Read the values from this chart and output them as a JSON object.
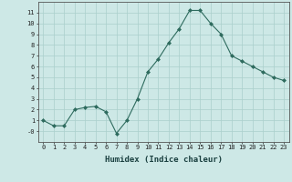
{
  "x": [
    0,
    1,
    2,
    3,
    4,
    5,
    6,
    7,
    8,
    9,
    10,
    11,
    12,
    13,
    14,
    15,
    16,
    17,
    18,
    19,
    20,
    21,
    22,
    23
  ],
  "y": [
    1.0,
    0.5,
    0.5,
    2.0,
    2.2,
    2.3,
    1.8,
    -0.2,
    1.0,
    3.0,
    5.5,
    6.7,
    8.2,
    9.5,
    11.2,
    11.2,
    10.0,
    9.0,
    7.0,
    6.5,
    6.0,
    5.5,
    5.0,
    4.7
  ],
  "xlabel": "Humidex (Indice chaleur)",
  "ylim": [
    -1,
    12
  ],
  "xlim": [
    -0.5,
    23.5
  ],
  "yticks": [
    0,
    1,
    2,
    3,
    4,
    5,
    6,
    7,
    8,
    9,
    10,
    11
  ],
  "ytick_labels": [
    "-0",
    "1",
    "2",
    "3",
    "4",
    "5",
    "6",
    "7",
    "8",
    "9",
    "10",
    "11"
  ],
  "xtick_labels": [
    "0",
    "1",
    "2",
    "3",
    "4",
    "5",
    "6",
    "7",
    "8",
    "9",
    "10",
    "11",
    "12",
    "13",
    "14",
    "15",
    "16",
    "17",
    "18",
    "19",
    "20",
    "21",
    "22",
    "23"
  ],
  "line_color": "#2e6b5e",
  "marker": "D",
  "marker_size": 2.0,
  "bg_color": "#cde8e6",
  "grid_color": "#aacfcc",
  "xlabel_fontsize": 6.5,
  "tick_fontsize": 5.0
}
